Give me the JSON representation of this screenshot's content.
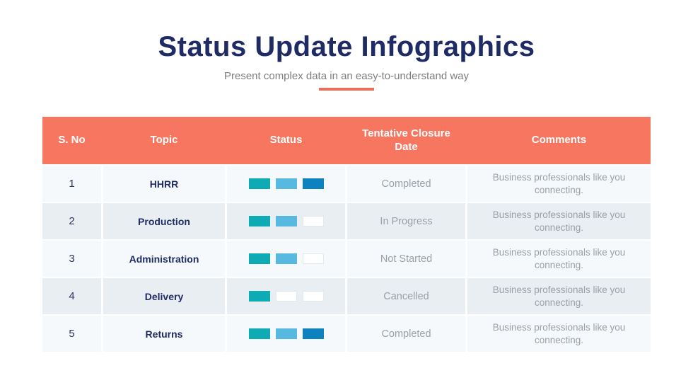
{
  "header": {
    "title": "Status Update Infographics",
    "subtitle": "Present complex data in an easy-to-understand way"
  },
  "colors": {
    "accent_salmon": "#F7765F",
    "accent_underline": "#E8705B",
    "title_navy": "#1F2B64",
    "number_navy": "#2A3560",
    "subtitle_gray": "#7E7E7E",
    "muted_gray": "#99A0A7",
    "row_light": "#F6F9FB",
    "row_alt": "#E9EEF3",
    "bar_teal": "#0FABB4",
    "bar_lightblue": "#57B8E0",
    "bar_darkblue": "#0E82BE",
    "bar_empty": "#FFFFFF"
  },
  "table": {
    "columns": [
      "S. No",
      "Topic",
      "Status",
      "Tentative Closure Date",
      "Comments"
    ],
    "rows": [
      {
        "sno": "1",
        "topic": "HHRR",
        "bars": [
          "teal",
          "lightblue",
          "darkblue"
        ],
        "closure": "Completed",
        "comments": "Business professionals like you connecting."
      },
      {
        "sno": "2",
        "topic": "Production",
        "bars": [
          "teal",
          "lightblue",
          "empty"
        ],
        "closure": "In Progress",
        "comments": "Business professionals like you connecting."
      },
      {
        "sno": "3",
        "topic": "Administration",
        "bars": [
          "teal",
          "lightblue",
          "empty"
        ],
        "closure": "Not Started",
        "comments": "Business professionals like you connecting."
      },
      {
        "sno": "4",
        "topic": "Delivery",
        "bars": [
          "teal",
          "empty",
          "empty"
        ],
        "closure": "Cancelled",
        "comments": "Business professionals like you connecting."
      },
      {
        "sno": "5",
        "topic": "Returns",
        "bars": [
          "teal",
          "lightblue",
          "darkblue"
        ],
        "closure": "Completed",
        "comments": "Business professionals like you connecting."
      }
    ]
  },
  "chart_data": {
    "type": "table",
    "title": "Status Update Infographics",
    "subtitle": "Present complex data in an easy-to-understand way",
    "columns": [
      "S. No",
      "Topic",
      "Status",
      "Tentative Closure Date",
      "Comments"
    ],
    "rows": [
      [
        "1",
        "HHRR",
        "3 of 3 segments filled (teal, light blue, dark blue)",
        "Completed",
        "Business professionals like you connecting."
      ],
      [
        "2",
        "Production",
        "2 of 3 segments filled (teal, light blue)",
        "In Progress",
        "Business professionals like you connecting."
      ],
      [
        "3",
        "Administration",
        "2 of 3 segments filled (teal, light blue)",
        "Not Started",
        "Business professionals like you connecting."
      ],
      [
        "4",
        "Delivery",
        "1 of 3 segments filled (teal)",
        "Cancelled",
        "Business professionals like you connecting."
      ],
      [
        "5",
        "Returns",
        "3 of 3 segments filled (teal, light blue, dark blue)",
        "Completed",
        "Business professionals like you connecting."
      ]
    ],
    "legend_position": "none",
    "grid": "row and column separators (thin white lines)"
  }
}
